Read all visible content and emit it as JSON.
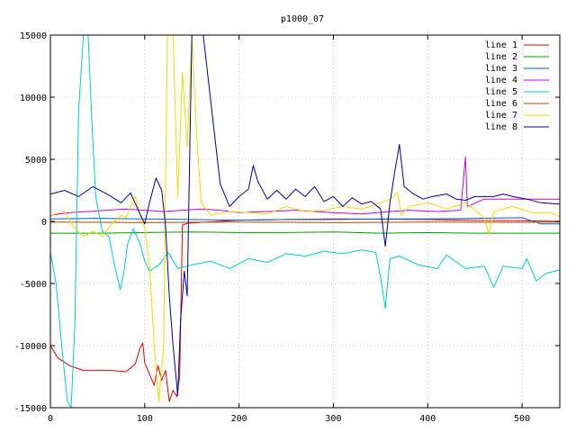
{
  "chart_data": {
    "type": "line",
    "title": "p1000_07",
    "xlabel": "",
    "ylabel": "",
    "xlim": [
      0,
      540
    ],
    "ylim": [
      -15000,
      15000
    ],
    "xticks": [
      0,
      100,
      200,
      300,
      400,
      500
    ],
    "yticks": [
      -15000,
      -10000,
      -5000,
      0,
      5000,
      10000,
      15000
    ],
    "grid": true,
    "legend_position": "top-right",
    "series": [
      {
        "name": "line 1",
        "color": "#dd0000",
        "points": [
          [
            0,
            -10000
          ],
          [
            8,
            -11000
          ],
          [
            20,
            -11600
          ],
          [
            35,
            -12000
          ],
          [
            50,
            -12000
          ],
          [
            65,
            -12000
          ],
          [
            80,
            -12100
          ],
          [
            90,
            -11500
          ],
          [
            95,
            -10200
          ],
          [
            98,
            -9800
          ],
          [
            100,
            -11400
          ],
          [
            105,
            -12300
          ],
          [
            110,
            -13200
          ],
          [
            114,
            -11600
          ],
          [
            118,
            -12800
          ],
          [
            122,
            -12000
          ],
          [
            126,
            -14500
          ],
          [
            130,
            -13600
          ],
          [
            134,
            -14100
          ],
          [
            137,
            -12500
          ],
          [
            140,
            -300
          ],
          [
            145,
            -150
          ],
          [
            160,
            -80
          ],
          [
            200,
            100
          ],
          [
            250,
            150
          ],
          [
            300,
            200
          ],
          [
            350,
            180
          ],
          [
            400,
            150
          ],
          [
            450,
            80
          ],
          [
            500,
            50
          ],
          [
            540,
            0
          ]
        ]
      },
      {
        "name": "line 2",
        "color": "#00a000",
        "points": [
          [
            0,
            -950
          ],
          [
            50,
            -950
          ],
          [
            100,
            -900
          ],
          [
            150,
            -850
          ],
          [
            200,
            -900
          ],
          [
            250,
            -900
          ],
          [
            300,
            -850
          ],
          [
            350,
            -950
          ],
          [
            400,
            -900
          ],
          [
            450,
            -950
          ],
          [
            500,
            -950
          ],
          [
            540,
            -950
          ]
        ]
      },
      {
        "name": "line 3",
        "color": "#0060c8",
        "points": [
          [
            0,
            200
          ],
          [
            50,
            250
          ],
          [
            100,
            200
          ],
          [
            150,
            150
          ],
          [
            200,
            100
          ],
          [
            250,
            150
          ],
          [
            300,
            150
          ],
          [
            350,
            200
          ],
          [
            400,
            200
          ],
          [
            450,
            250
          ],
          [
            500,
            300
          ],
          [
            520,
            -200
          ],
          [
            540,
            -200
          ]
        ]
      },
      {
        "name": "line 4",
        "color": "#c000ff",
        "points": [
          [
            0,
            500
          ],
          [
            20,
            700
          ],
          [
            40,
            800
          ],
          [
            60,
            900
          ],
          [
            80,
            1000
          ],
          [
            100,
            900
          ],
          [
            120,
            800
          ],
          [
            140,
            900
          ],
          [
            160,
            1000
          ],
          [
            180,
            900
          ],
          [
            200,
            700
          ],
          [
            230,
            800
          ],
          [
            260,
            900
          ],
          [
            300,
            700
          ],
          [
            330,
            600
          ],
          [
            360,
            800
          ],
          [
            380,
            900
          ],
          [
            410,
            800
          ],
          [
            435,
            900
          ],
          [
            440,
            5200
          ],
          [
            442,
            1200
          ],
          [
            460,
            1800
          ],
          [
            490,
            1800
          ],
          [
            520,
            1800
          ],
          [
            540,
            1800
          ]
        ]
      },
      {
        "name": "line 5",
        "color": "#00cccc",
        "points": [
          [
            0,
            -2500
          ],
          [
            6,
            -5000
          ],
          [
            12,
            -10000
          ],
          [
            18,
            -14500
          ],
          [
            22,
            -15000
          ],
          [
            26,
            -8000
          ],
          [
            30,
            9000
          ],
          [
            35,
            15000
          ],
          [
            40,
            15000
          ],
          [
            44,
            8000
          ],
          [
            48,
            2000
          ],
          [
            55,
            -800
          ],
          [
            62,
            -1200
          ],
          [
            68,
            -3500
          ],
          [
            74,
            -5500
          ],
          [
            78,
            -4000
          ],
          [
            82,
            -1800
          ],
          [
            88,
            -600
          ],
          [
            95,
            -1800
          ],
          [
            100,
            -3200
          ],
          [
            105,
            -4000
          ],
          [
            115,
            -3500
          ],
          [
            125,
            -2500
          ],
          [
            135,
            -3800
          ],
          [
            150,
            -3500
          ],
          [
            170,
            -3200
          ],
          [
            190,
            -3800
          ],
          [
            210,
            -3000
          ],
          [
            230,
            -3300
          ],
          [
            250,
            -2600
          ],
          [
            270,
            -2800
          ],
          [
            290,
            -2400
          ],
          [
            310,
            -2600
          ],
          [
            330,
            -2300
          ],
          [
            345,
            -2500
          ],
          [
            350,
            -4500
          ],
          [
            355,
            -7000
          ],
          [
            360,
            -3000
          ],
          [
            370,
            -2800
          ],
          [
            390,
            -3500
          ],
          [
            410,
            -3800
          ],
          [
            420,
            -2700
          ],
          [
            440,
            -3800
          ],
          [
            460,
            -3600
          ],
          [
            470,
            -5300
          ],
          [
            480,
            -3600
          ],
          [
            500,
            -3800
          ],
          [
            505,
            -3000
          ],
          [
            515,
            -4800
          ],
          [
            525,
            -4200
          ],
          [
            540,
            -3900
          ]
        ]
      },
      {
        "name": "line 6",
        "color": "#b05000",
        "points": [
          [
            0,
            -50
          ],
          [
            100,
            -100
          ],
          [
            200,
            -50
          ],
          [
            300,
            -100
          ],
          [
            400,
            -50
          ],
          [
            500,
            -80
          ],
          [
            540,
            -50
          ]
        ]
      },
      {
        "name": "line 7",
        "color": "#eedd00",
        "points": [
          [
            0,
            500
          ],
          [
            15,
            800
          ],
          [
            25,
            -500
          ],
          [
            35,
            -1200
          ],
          [
            45,
            -800
          ],
          [
            55,
            -1200
          ],
          [
            65,
            -200
          ],
          [
            75,
            500
          ],
          [
            80,
            300
          ],
          [
            85,
            1200
          ],
          [
            90,
            2000
          ],
          [
            95,
            500
          ],
          [
            100,
            -500
          ],
          [
            105,
            -3500
          ],
          [
            110,
            -10000
          ],
          [
            115,
            -14500
          ],
          [
            120,
            -10000
          ],
          [
            124,
            15000
          ],
          [
            130,
            15000
          ],
          [
            135,
            2000
          ],
          [
            140,
            12000
          ],
          [
            145,
            6000
          ],
          [
            150,
            15000
          ],
          [
            155,
            7000
          ],
          [
            160,
            1500
          ],
          [
            170,
            500
          ],
          [
            190,
            800
          ],
          [
            210,
            700
          ],
          [
            230,
            600
          ],
          [
            250,
            1200
          ],
          [
            270,
            800
          ],
          [
            290,
            900
          ],
          [
            310,
            1200
          ],
          [
            330,
            1000
          ],
          [
            350,
            1500
          ],
          [
            360,
            1800
          ],
          [
            368,
            2300
          ],
          [
            372,
            500
          ],
          [
            380,
            1200
          ],
          [
            400,
            1500
          ],
          [
            420,
            1000
          ],
          [
            440,
            1500
          ],
          [
            460,
            300
          ],
          [
            465,
            -1000
          ],
          [
            470,
            800
          ],
          [
            490,
            1200
          ],
          [
            510,
            700
          ],
          [
            530,
            700
          ],
          [
            540,
            400
          ]
        ]
      },
      {
        "name": "line 8",
        "color": "#000099",
        "points": [
          [
            0,
            2200
          ],
          [
            15,
            2500
          ],
          [
            30,
            2000
          ],
          [
            45,
            2800
          ],
          [
            60,
            2200
          ],
          [
            75,
            1500
          ],
          [
            85,
            2300
          ],
          [
            95,
            600
          ],
          [
            100,
            -200
          ],
          [
            105,
            1500
          ],
          [
            112,
            3500
          ],
          [
            118,
            2500
          ],
          [
            122,
            -300
          ],
          [
            126,
            -6000
          ],
          [
            130,
            -10000
          ],
          [
            135,
            -14000
          ],
          [
            138,
            -8000
          ],
          [
            142,
            -4000
          ],
          [
            145,
            -6000
          ],
          [
            150,
            15000
          ],
          [
            156,
            15000
          ],
          [
            162,
            15000
          ],
          [
            168,
            11000
          ],
          [
            174,
            7000
          ],
          [
            180,
            3000
          ],
          [
            190,
            1200
          ],
          [
            200,
            2000
          ],
          [
            210,
            2600
          ],
          [
            215,
            4500
          ],
          [
            220,
            3200
          ],
          [
            230,
            1800
          ],
          [
            240,
            2500
          ],
          [
            250,
            1800
          ],
          [
            260,
            2600
          ],
          [
            270,
            2000
          ],
          [
            280,
            2800
          ],
          [
            290,
            1600
          ],
          [
            300,
            2000
          ],
          [
            310,
            1200
          ],
          [
            320,
            1900
          ],
          [
            330,
            1400
          ],
          [
            340,
            1600
          ],
          [
            350,
            1000
          ],
          [
            355,
            -2000
          ],
          [
            360,
            1500
          ],
          [
            365,
            4000
          ],
          [
            370,
            6200
          ],
          [
            375,
            2800
          ],
          [
            385,
            2200
          ],
          [
            395,
            1800
          ],
          [
            405,
            2000
          ],
          [
            420,
            2200
          ],
          [
            430,
            1800
          ],
          [
            440,
            1700
          ],
          [
            450,
            2000
          ],
          [
            470,
            2000
          ],
          [
            480,
            2200
          ],
          [
            490,
            2000
          ],
          [
            505,
            1800
          ],
          [
            520,
            1500
          ],
          [
            540,
            1400
          ]
        ]
      }
    ]
  }
}
